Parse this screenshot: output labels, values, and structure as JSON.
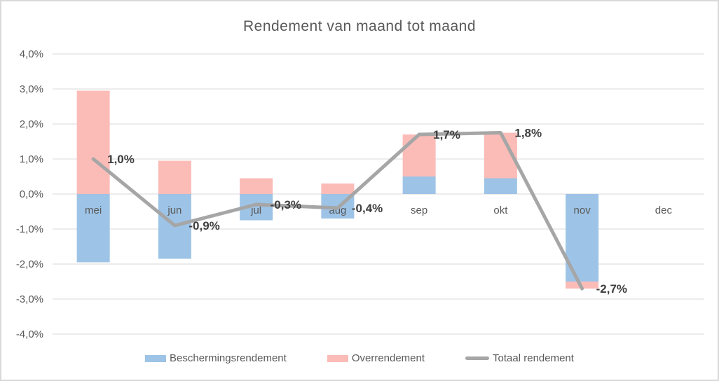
{
  "title": "Rendement van maand tot maand",
  "colors": {
    "gridline": "#D9D9D9",
    "axis_text": "#595959",
    "data_label_text": "#3F3F3F",
    "title_text": "#595959",
    "border": "#D9D9D9",
    "background": "#FFFFFF",
    "beschermingsrendement": "#9DC3E6",
    "overrendement": "#FBBCB8",
    "totaal_rendement": "#A6A6A6"
  },
  "chart_data": {
    "type": "bar",
    "subtype": "stacked-columns-with-line-overlay",
    "title": "Rendement van maand tot maand",
    "categories": [
      "mei",
      "jun",
      "jul",
      "aug",
      "sep",
      "okt",
      "nov",
      "dec"
    ],
    "series": [
      {
        "name": "Beschermingsrendement",
        "type": "bar",
        "color": "#9DC3E6",
        "values": [
          -1.95,
          -1.85,
          -0.75,
          -0.7,
          0.5,
          0.45,
          -2.5,
          null
        ]
      },
      {
        "name": "Overrendement",
        "type": "bar",
        "color": "#FBBCB8",
        "values": [
          2.95,
          0.95,
          0.45,
          0.3,
          1.2,
          1.3,
          -0.2,
          null
        ]
      },
      {
        "name": "Totaal rendement",
        "type": "line",
        "color": "#A6A6A6",
        "values": [
          1.0,
          -0.9,
          -0.3,
          -0.4,
          1.7,
          1.75,
          -2.7,
          null
        ],
        "point_labels": [
          "1,0%",
          "-0,9%",
          "-0,3%",
          "-0,4%",
          "1,7%",
          "1,8%",
          "-2,7%",
          null
        ]
      }
    ],
    "ylabel": "",
    "xlabel": "",
    "ylim": [
      -4,
      4
    ],
    "ytick_step": 1,
    "ytick_labels": [
      "4,0%",
      "3,0%",
      "2,0%",
      "1,0%",
      "0,0%",
      "-1,0%",
      "-2,0%",
      "-3,0%",
      "-4,0%"
    ],
    "grid": true,
    "legend_position": "bottom"
  }
}
